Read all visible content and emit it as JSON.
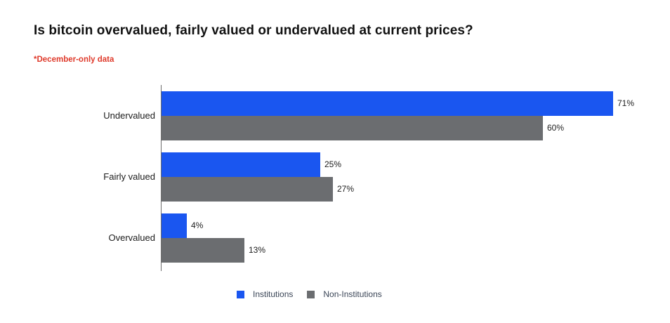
{
  "chart_data": {
    "type": "bar",
    "orientation": "horizontal",
    "title": "Is bitcoin overvalued, fairly valued or undervalued at current prices?",
    "subtitle": "*December-only data",
    "categories": [
      "Undervalued",
      "Fairly valued",
      "Overvalued"
    ],
    "series": [
      {
        "name": "Institutions",
        "color": "#1a56f0",
        "values": [
          71,
          25,
          4
        ]
      },
      {
        "name": "Non-Institutions",
        "color": "#6b6d70",
        "values": [
          60,
          27,
          13
        ]
      }
    ],
    "value_suffix": "%",
    "xlim": [
      0,
      80
    ],
    "grid": false,
    "data_labels": true,
    "legend_position": "bottom"
  },
  "colors": {
    "note_red": "#df3a2b",
    "legend_text": "#3a4556",
    "axis_line": "#6e6e6e",
    "value_text": "#1c1c1c"
  }
}
